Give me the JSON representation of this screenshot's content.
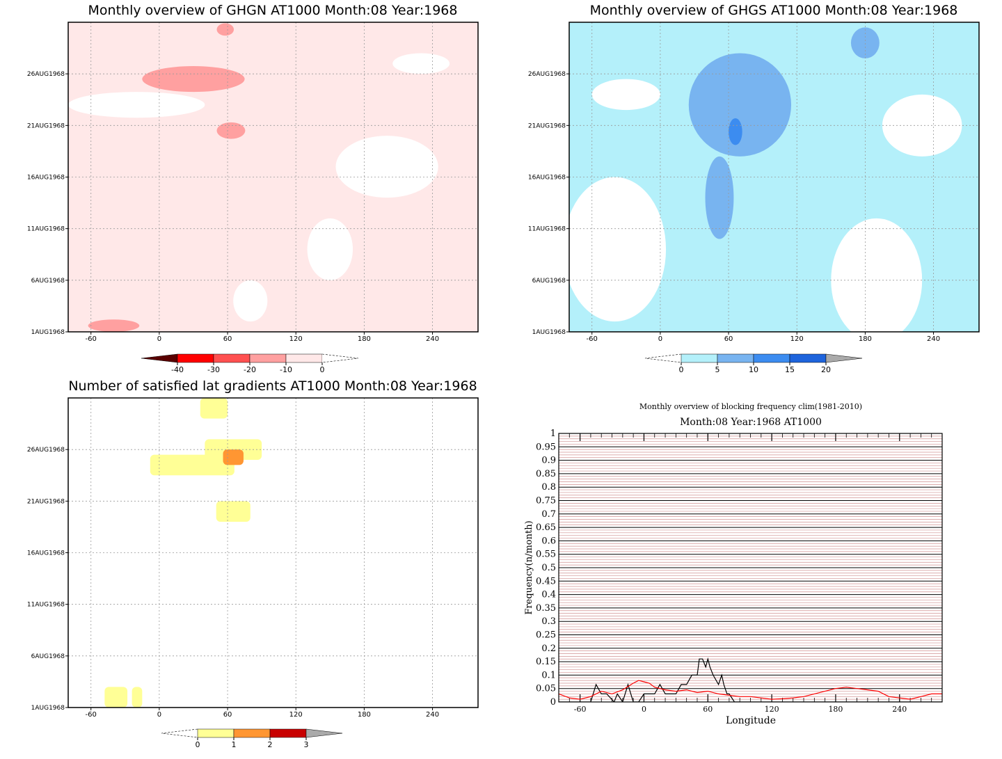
{
  "chart_data": [
    {
      "type": "heatmap",
      "id": "ghgn",
      "title": "Monthly overview of GHGN AT1000 Month:08 Year:1968",
      "x_ticks": [
        "-60",
        "0",
        "60",
        "120",
        "180",
        "240"
      ],
      "x_tick_values": [
        -60,
        0,
        60,
        120,
        180,
        240
      ],
      "xlim": [
        -80,
        280
      ],
      "y_ticks": [
        "1AUG1968",
        "6AUG1968",
        "11AUG1968",
        "16AUG1968",
        "21AUG1968",
        "26AUG1968"
      ],
      "y_tick_values": [
        1,
        6,
        11,
        16,
        21,
        26
      ],
      "ylim": [
        1,
        31
      ],
      "colorbar": {
        "labels": [
          "-40",
          "-30",
          "-20",
          "-10",
          "0"
        ],
        "colors": [
          "#5a0000",
          "#ff0000",
          "#ff5050",
          "#ffa0a0",
          "#ffe8e8"
        ]
      },
      "background_color": "#ffe8e8",
      "blobs": [
        {
          "lon": -20,
          "day": 23,
          "w": 120,
          "h": 2.5,
          "color": "#ffffff"
        },
        {
          "lon": 80,
          "day": 4,
          "w": 30,
          "h": 4,
          "color": "#ffffff"
        },
        {
          "lon": 150,
          "day": 9,
          "w": 40,
          "h": 6,
          "color": "#ffffff"
        },
        {
          "lon": 200,
          "day": 17,
          "w": 90,
          "h": 6,
          "color": "#ffffff"
        },
        {
          "lon": 230,
          "day": 27,
          "w": 50,
          "h": 2,
          "color": "#ffffff"
        },
        {
          "lon": 30,
          "day": 25.5,
          "w": 90,
          "h": 2.5,
          "color": "#ffa0a0"
        },
        {
          "lon": 63,
          "day": 20.5,
          "w": 25,
          "h": 1.6,
          "color": "#ffa0a0"
        },
        {
          "lon": 58,
          "day": 30.3,
          "w": 15,
          "h": 1.2,
          "color": "#ffa0a0"
        },
        {
          "lon": -40,
          "day": 1.6,
          "w": 45,
          "h": 1.2,
          "color": "#ffa0a0"
        }
      ]
    },
    {
      "type": "heatmap",
      "id": "ghgs",
      "title": "Monthly overview of GHGS AT1000 Month:08 Year:1968",
      "x_ticks": [
        "-60",
        "0",
        "60",
        "120",
        "180",
        "240"
      ],
      "x_tick_values": [
        -60,
        0,
        60,
        120,
        180,
        240
      ],
      "xlim": [
        -80,
        280
      ],
      "y_ticks": [
        "1AUG1968",
        "6AUG1968",
        "11AUG1968",
        "16AUG1968",
        "21AUG1968",
        "26AUG1968"
      ],
      "y_tick_values": [
        1,
        6,
        11,
        16,
        21,
        26
      ],
      "ylim": [
        1,
        31
      ],
      "colorbar": {
        "labels": [
          "0",
          "5",
          "10",
          "15",
          "20"
        ],
        "colors": [
          "#b4f0fa",
          "#78b4f0",
          "#3c8cf0",
          "#1e64dc",
          "#aaaaaa"
        ]
      },
      "background_color": "#b4f0fa",
      "blobs": [
        {
          "lon": -40,
          "day": 9,
          "w": 90,
          "h": 14,
          "color": "#ffffff"
        },
        {
          "lon": 190,
          "day": 6,
          "w": 80,
          "h": 12,
          "color": "#ffffff"
        },
        {
          "lon": 230,
          "day": 21,
          "w": 70,
          "h": 6,
          "color": "#ffffff"
        },
        {
          "lon": -30,
          "day": 24,
          "w": 60,
          "h": 3,
          "color": "#ffffff"
        },
        {
          "lon": 70,
          "day": 23,
          "w": 90,
          "h": 10,
          "color": "#78b4f0"
        },
        {
          "lon": 52,
          "day": 14,
          "w": 25,
          "h": 8,
          "color": "#78b4f0"
        },
        {
          "lon": 180,
          "day": 29,
          "w": 25,
          "h": 3,
          "color": "#78b4f0"
        },
        {
          "lon": 66,
          "day": 20.4,
          "w": 12,
          "h": 2.6,
          "color": "#3c8cf0"
        }
      ]
    },
    {
      "type": "heatmap",
      "id": "gradients",
      "title": "Number of satisfied lat gradients AT1000 Month:08 Year:1968",
      "x_ticks": [
        "-60",
        "0",
        "60",
        "120",
        "180",
        "240"
      ],
      "x_tick_values": [
        -60,
        0,
        60,
        120,
        180,
        240
      ],
      "xlim": [
        -80,
        280
      ],
      "y_ticks": [
        "1AUG1968",
        "6AUG1968",
        "11AUG1968",
        "16AUG1968",
        "21AUG1968",
        "26AUG1968"
      ],
      "y_tick_values": [
        1,
        6,
        11,
        16,
        21,
        26
      ],
      "ylim": [
        1,
        31
      ],
      "colorbar": {
        "labels": [
          "0",
          "1",
          "2",
          "3"
        ],
        "colors": [
          "#ffff96",
          "#ff9632",
          "#c80000",
          "#aaaaaa"
        ]
      },
      "background_color": "#ffffff",
      "cells": [
        {
          "lon0": 36,
          "lon1": 60,
          "day0": 29,
          "day1": 31,
          "value": 1
        },
        {
          "lon0": -8,
          "lon1": 66,
          "day0": 23.5,
          "day1": 25.5,
          "value": 1
        },
        {
          "lon0": 40,
          "lon1": 90,
          "day0": 25,
          "day1": 27,
          "value": 1
        },
        {
          "lon0": 50,
          "lon1": 80,
          "day0": 19,
          "day1": 21,
          "value": 1
        },
        {
          "lon0": 56,
          "lon1": 74,
          "day0": 24.5,
          "day1": 26,
          "value": 2
        },
        {
          "lon0": -48,
          "lon1": -28,
          "day0": 1,
          "day1": 3,
          "value": 1
        },
        {
          "lon0": -24,
          "lon1": -15,
          "day0": 1,
          "day1": 3,
          "value": 1
        }
      ]
    },
    {
      "type": "line",
      "id": "blocking",
      "title": "Monthly overview of blocking frequency clim(1981-2010)",
      "subtitle": "Month:08 Year:1968  AT1000",
      "xlabel": "Longitude",
      "ylabel": "Frequency(n/month)",
      "xlim": [
        -80,
        280
      ],
      "ylim": [
        0,
        1
      ],
      "x_ticks": [
        "-60",
        "0",
        "60",
        "120",
        "180",
        "240"
      ],
      "x_tick_values": [
        -60,
        0,
        60,
        120,
        180,
        240
      ],
      "y_ticks": [
        "0",
        "0.05",
        "0.1",
        "0.15",
        "0.2",
        "0.25",
        "0.3",
        "0.35",
        "0.4",
        "0.45",
        "0.5",
        "0.55",
        "0.6",
        "0.65",
        "0.7",
        "0.75",
        "0.8",
        "0.85",
        "0.9",
        "0.95",
        "1"
      ],
      "y_tick_values": [
        0,
        0.05,
        0.1,
        0.15,
        0.2,
        0.25,
        0.3,
        0.35,
        0.4,
        0.45,
        0.5,
        0.55,
        0.6,
        0.65,
        0.7,
        0.75,
        0.8,
        0.85,
        0.9,
        0.95,
        1
      ],
      "grid": true,
      "grid_color": "#d09090",
      "series": [
        {
          "color": "#000000",
          "x": [
            -80,
            -50,
            -45,
            -40,
            -35,
            -28,
            -25,
            -20,
            -15,
            -10,
            -5,
            0,
            10,
            15,
            20,
            25,
            30,
            35,
            40,
            45,
            50,
            52,
            55,
            58,
            60,
            62,
            65,
            70,
            73,
            75,
            78,
            80,
            85,
            90,
            100,
            280
          ],
          "y": [
            0,
            0,
            0.065,
            0.03,
            0.03,
            0,
            0.03,
            0,
            0.065,
            0,
            0,
            0.03,
            0.03,
            0.065,
            0.03,
            0.03,
            0.03,
            0.065,
            0.065,
            0.1,
            0.1,
            0.16,
            0.16,
            0.13,
            0.16,
            0.13,
            0.1,
            0.065,
            0.1,
            0.065,
            0.03,
            0.03,
            0,
            0,
            0,
            0
          ]
        },
        {
          "color": "#ff0000",
          "x": [
            -80,
            -70,
            -60,
            -50,
            -40,
            -30,
            -20,
            -10,
            -5,
            0,
            5,
            10,
            20,
            30,
            40,
            50,
            60,
            70,
            80,
            90,
            100,
            110,
            120,
            130,
            140,
            150,
            160,
            170,
            180,
            190,
            200,
            210,
            220,
            230,
            240,
            250,
            260,
            270,
            280
          ],
          "y": [
            0.03,
            0.015,
            0.01,
            0.02,
            0.04,
            0.03,
            0.045,
            0.07,
            0.08,
            0.075,
            0.07,
            0.055,
            0.045,
            0.04,
            0.045,
            0.035,
            0.04,
            0.03,
            0.025,
            0.02,
            0.02,
            0.015,
            0.01,
            0.012,
            0.015,
            0.02,
            0.03,
            0.04,
            0.05,
            0.055,
            0.05,
            0.045,
            0.04,
            0.02,
            0.015,
            0.01,
            0.02,
            0.03,
            0.03
          ]
        }
      ]
    }
  ]
}
